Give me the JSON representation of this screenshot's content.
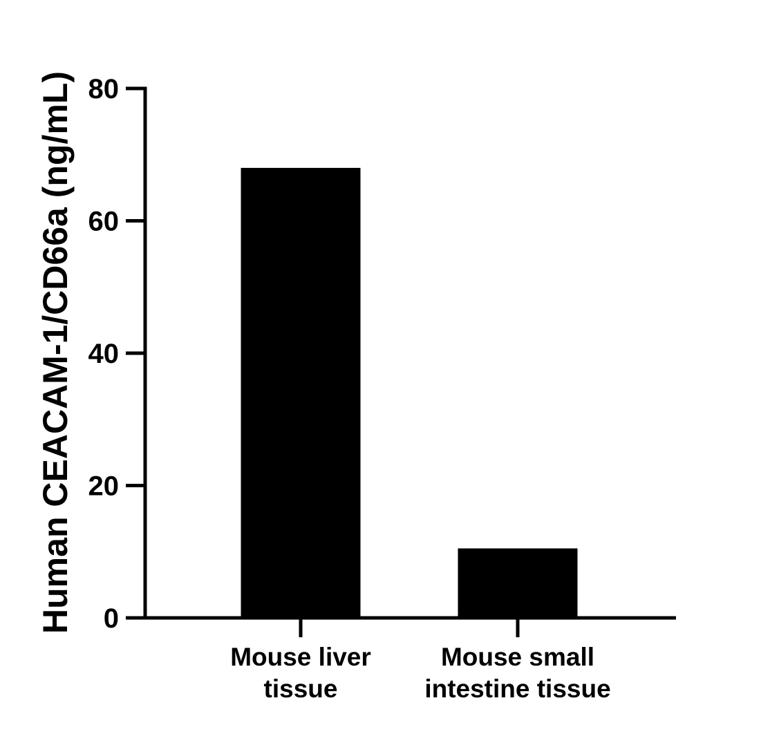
{
  "chart_data": {
    "type": "bar",
    "title": "",
    "xlabel": "",
    "ylabel": "Human CEACAM-1/CD66a (ng/mL)",
    "categories": [
      [
        "Mouse liver",
        "tissue"
      ],
      [
        "Mouse small",
        "intestine tissue"
      ]
    ],
    "values": [
      68,
      10.5
    ],
    "ylim": [
      0,
      80
    ],
    "yticks": [
      0,
      20,
      40,
      60,
      80
    ],
    "grid": false,
    "legend": "none",
    "bar_color": "#000000",
    "axis_color": "#000000"
  }
}
